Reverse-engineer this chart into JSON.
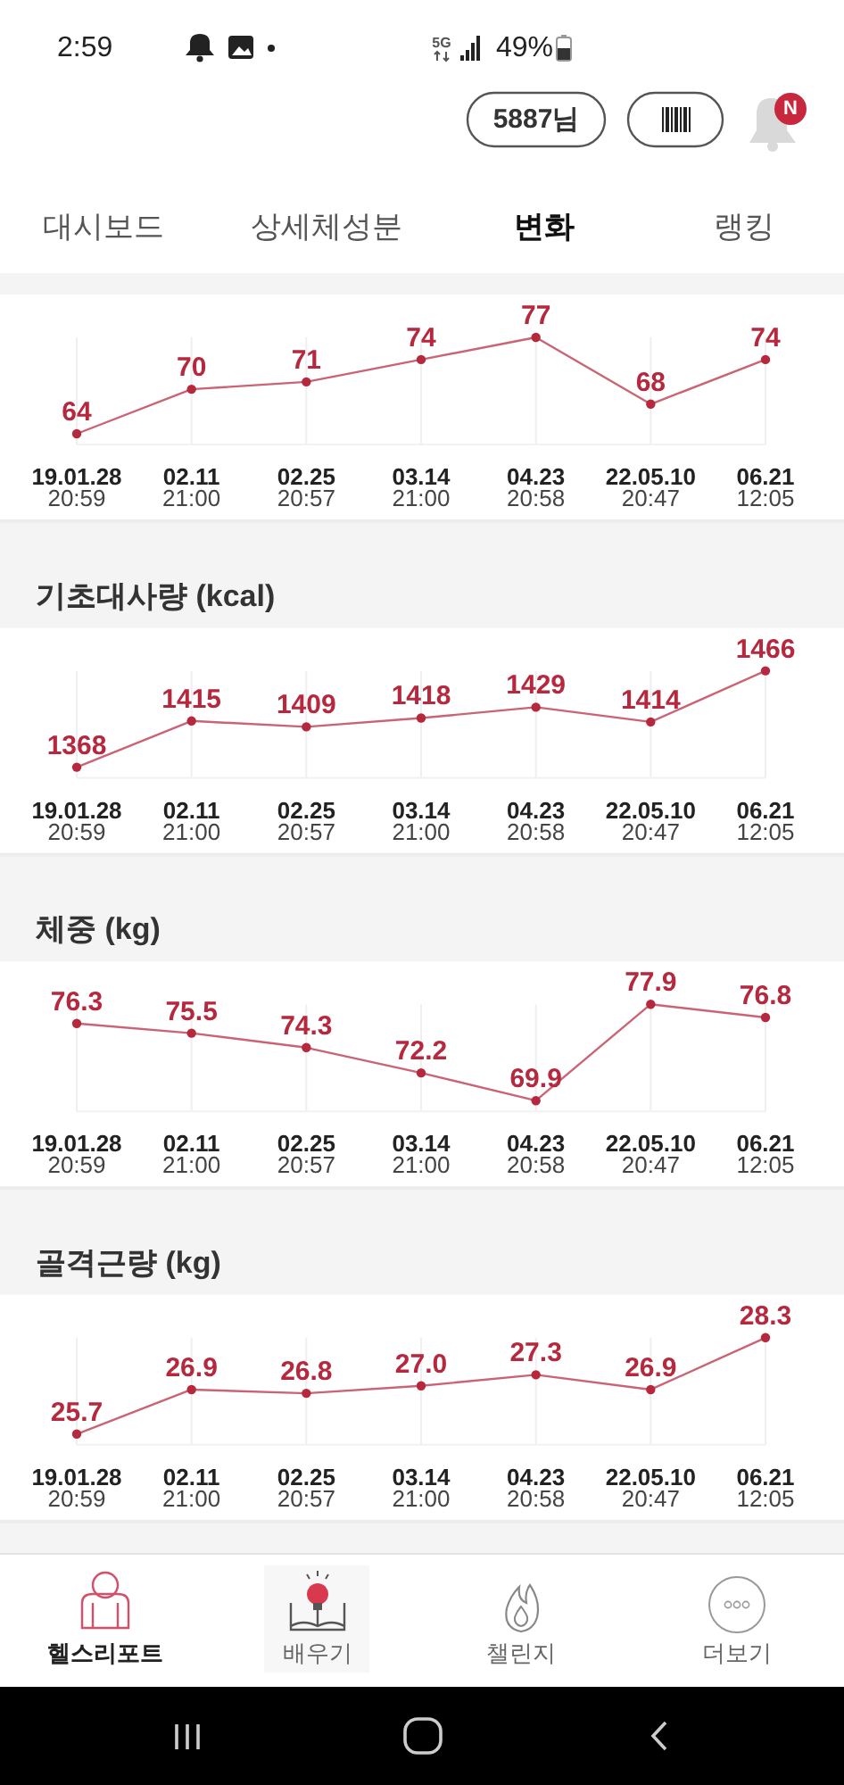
{
  "chart_data": [
    {
      "type": "other",
      "annotations": [
        "2:59",
        "5G",
        "49%",
        "5887님",
        "N",
        "대시보드",
        "상세체성분",
        "변화",
        "랭킹"
      ]
    },
    {
      "type": "line",
      "categories": [
        "19.01.28\n20:59",
        "02.11\n21:00",
        "02.25\n20:57",
        "03.14\n21:00",
        "04.23\n20:58",
        "22.05.10\n20:47",
        "06.21\n12:05"
      ],
      "values": [
        64,
        70,
        71,
        74,
        77,
        68,
        74
      ],
      "color": "#b5283e",
      "data_labels": true,
      "grid": "x",
      "marker": "circle"
    },
    {
      "type": "line",
      "title": "기초대사량 (kcal)",
      "categories": [
        "19.01.28\n20:59",
        "02.11\n21:00",
        "02.25\n20:57",
        "03.14\n21:00",
        "04.23\n20:58",
        "22.05.10\n20:47",
        "06.21\n12:05"
      ],
      "values": [
        1368,
        1415,
        1409,
        1418,
        1429,
        1414,
        1466
      ],
      "color": "#b5283e",
      "data_labels": true,
      "grid": "x",
      "marker": "circle"
    },
    {
      "type": "line",
      "title": "체중 (kg)",
      "categories": [
        "19.01.28\n20:59",
        "02.11\n21:00",
        "02.25\n20:57",
        "03.14\n21:00",
        "04.23\n20:58",
        "22.05.10\n20:47",
        "06.21\n12:05"
      ],
      "values": [
        76.3,
        75.5,
        74.3,
        72.2,
        69.9,
        77.9,
        76.8
      ],
      "color": "#b5283e",
      "data_labels": true,
      "grid": "x",
      "marker": "circle"
    },
    {
      "type": "line",
      "title": "골격근량 (kg)",
      "categories": [
        "19.01.28\n20:59",
        "02.11\n21:00",
        "02.25\n20:57",
        "03.14\n21:00",
        "04.23\n20:58",
        "22.05.10\n20:47",
        "06.21\n12:05"
      ],
      "values": [
        25.7,
        26.9,
        26.8,
        27.0,
        27.3,
        26.9,
        28.3
      ],
      "value_labels": [
        "25.7",
        "26.9",
        "26.8",
        "27.0",
        "27.3",
        "26.9",
        "28.3"
      ],
      "color": "#b5283e",
      "grid": "x",
      "marker": "circle"
    },
    {
      "type": "other",
      "annotations": [
        "헬스리포트",
        "배우기",
        "챌린지",
        "더보기"
      ]
    }
  ]
}
